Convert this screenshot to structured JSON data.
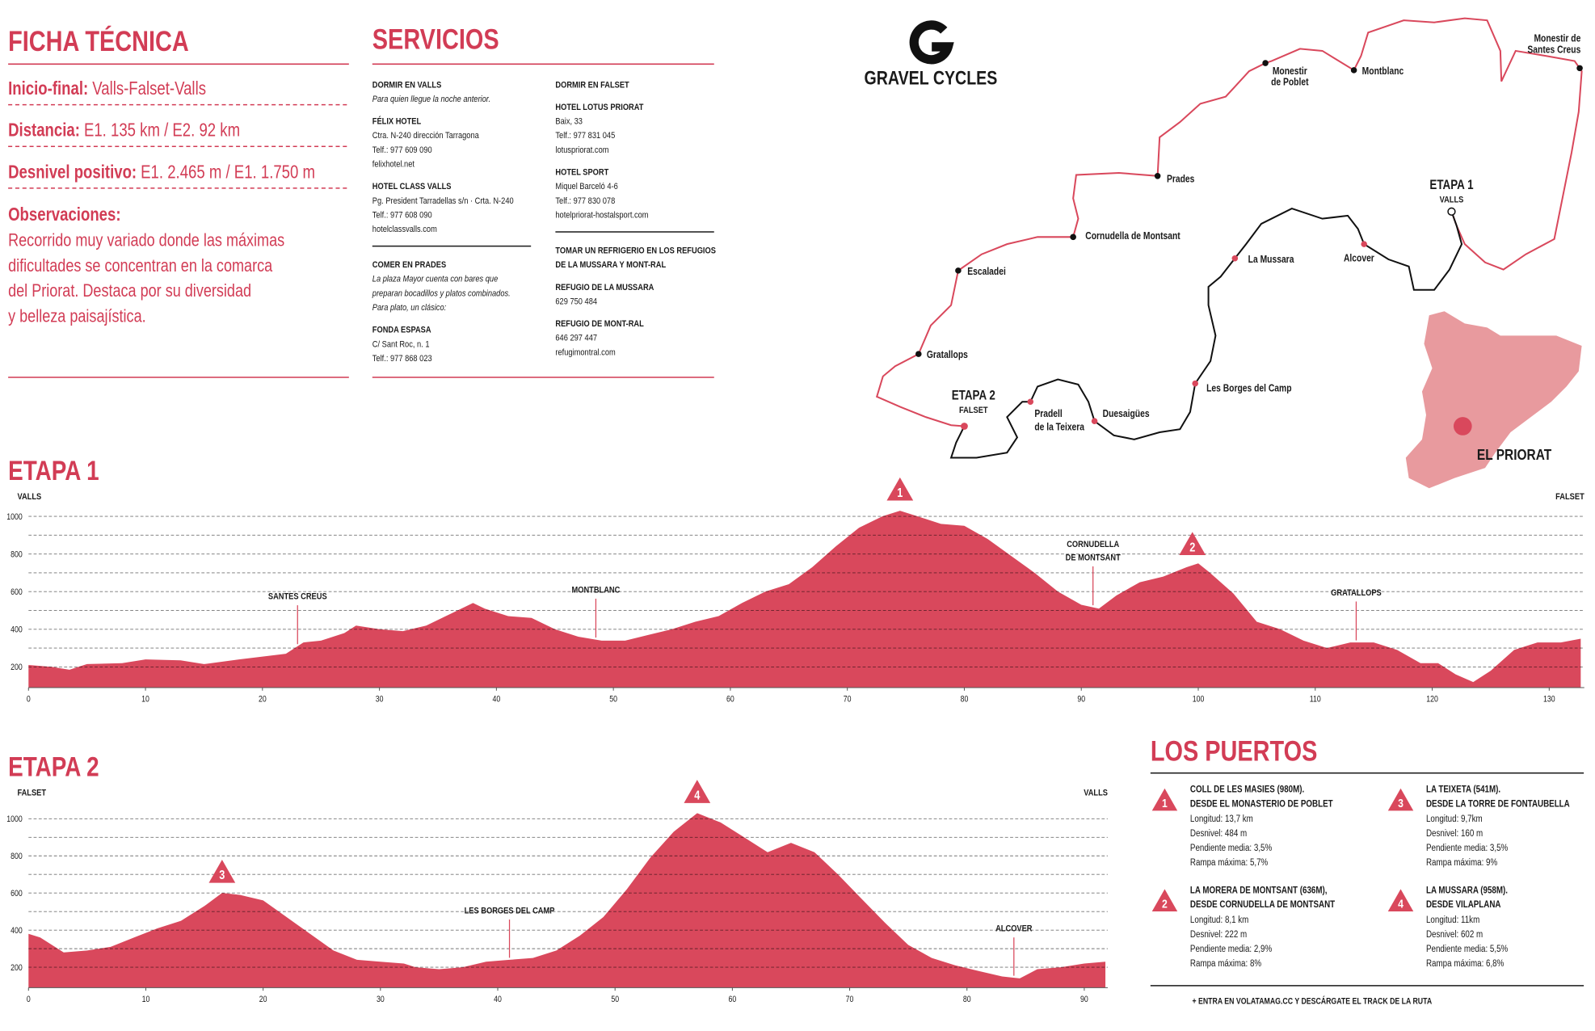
{
  "ficha_tecnica": {
    "title": "FICHA TÉCNICA",
    "items": [
      {
        "label": "Inicio-final:",
        "text": "Valls-Falset-Valls"
      },
      {
        "label": "Distancia:",
        "text": "E1. 135 km / E2. 92 km"
      },
      {
        "label": "Desnivel positivo:",
        "text": "E1. 2.465 m /  E1. 1.750 m"
      }
    ],
    "observaciones_label": "Observaciones:",
    "observaciones": [
      "Recorrido muy variado donde las máximas",
      "dificultades se concentran en la comarca",
      "del Priorat. Destaca por su diversidad",
      "y belleza paisajística."
    ]
  },
  "servicios": {
    "title": "SERVICIOS",
    "columns": [
      [
        [
          {
            "heading": [
              "DORMIR EN VALLS"
            ],
            "note": [
              "Para quien llegue la noche anterior."
            ]
          },
          {
            "heading": [
              "FÉLIX HOTEL"
            ],
            "lines": [
              "Ctra. N-240 dirección Tarragona",
              "Telf.: 977 609 090",
              "felixhotel.net"
            ]
          },
          {
            "heading": [
              "HOTEL CLASS VALLS"
            ],
            "lines": [
              "Pg. President Tarradellas s/n · Crta. N-240",
              "Telf.: 977 608 090",
              "hotelclassvalls.com"
            ]
          }
        ],
        [
          {
            "heading": [
              "COMER EN PRADES"
            ],
            "note": [
              "La plaza Mayor cuenta con bares que",
              "preparan bocadillos y platos combinados.",
              "Para plato, un clásico:"
            ]
          },
          {
            "heading": [
              "FONDA ESPASA"
            ],
            "lines": [
              "C/ Sant Roc, n. 1",
              "Telf.: 977 868 023"
            ]
          }
        ]
      ],
      [
        [
          {
            "heading": [
              "DORMIR EN FALSET"
            ]
          },
          {
            "heading": [
              "HOTEL LOTUS PRIORAT"
            ],
            "lines": [
              "Baix, 33",
              "Telf.: 977 831 045",
              "lotuspriorat.com"
            ]
          },
          {
            "heading": [
              "HOTEL  SPORT"
            ],
            "lines": [
              "Miquel Barceló 4-6",
              "Telf.: 977 830 078",
              "hotelpriorat-hostalsport.com"
            ]
          }
        ],
        [
          {
            "heading": [
              "TOMAR UN REFRIGERIO EN LOS REFUGIOS",
              "DE LA MUSSARA Y MONT-RAL"
            ]
          },
          {
            "heading": [
              "REFUGIO DE LA MUSSARA"
            ],
            "lines": [
              "629 750 484"
            ]
          },
          {
            "heading": [
              "REFUGIO DE MONT-RAL"
            ],
            "lines": [
              "646 297 447",
              "refugimontral.com"
            ]
          }
        ]
      ]
    ]
  },
  "map": {
    "brand": "GRAVEL CYCLES",
    "stage_labels": [
      {
        "title": "ETAPA 1",
        "subtitle": "VALLS"
      },
      {
        "title": "ETAPA 2",
        "subtitle": "FALSET"
      }
    ],
    "places_etapa_1": [
      [
        "Monestir de",
        "Santes Creus"
      ],
      [
        "Montblanc"
      ],
      [
        "Monestir",
        "de Poblet"
      ],
      [
        "Prades"
      ],
      [
        "Cornudella de Montsant"
      ],
      [
        "Escaladei"
      ],
      [
        "Gratallops"
      ]
    ],
    "places_etapa_2": [
      [
        "La Mussara"
      ],
      [
        "Alcover"
      ],
      [
        "Les Borges del Camp"
      ],
      [
        "Duesaigües"
      ],
      [
        "Pradell",
        "de la Teixera"
      ]
    ],
    "region": "EL PRIORAT"
  },
  "chart_data": [
    {
      "type": "area",
      "title": "ETAPA 1",
      "start_label": "VALLS",
      "end_label": "FALSET",
      "color": "#d9485c",
      "x": [
        0,
        2,
        3.5,
        5,
        8,
        10,
        13,
        15,
        18,
        20,
        22,
        23.5,
        25,
        27,
        28,
        30,
        32,
        34,
        36,
        38,
        39,
        41,
        43,
        45,
        47,
        49,
        51,
        53,
        55,
        57,
        59,
        61,
        63,
        65,
        67,
        69,
        71,
        73,
        74.5,
        76,
        78,
        80,
        82,
        84,
        86,
        88,
        90,
        91.5,
        93,
        95,
        97,
        99,
        100,
        101,
        103,
        105,
        107,
        109,
        111,
        113,
        115,
        117,
        119,
        120.5,
        122,
        123.5,
        125,
        127,
        129,
        131,
        132.7
      ],
      "values": [
        210,
        200,
        185,
        215,
        220,
        240,
        235,
        215,
        240,
        255,
        270,
        330,
        340,
        380,
        420,
        400,
        390,
        420,
        480,
        540,
        510,
        470,
        460,
        400,
        360,
        340,
        340,
        370,
        400,
        440,
        470,
        540,
        600,
        640,
        730,
        840,
        940,
        1000,
        1030,
        1000,
        960,
        950,
        880,
        790,
        700,
        600,
        530,
        510,
        580,
        650,
        680,
        730,
        750,
        700,
        590,
        440,
        400,
        340,
        300,
        330,
        330,
        290,
        220,
        220,
        160,
        120,
        180,
        290,
        330,
        330,
        350
      ],
      "xlim": [
        0,
        133
      ],
      "ylim": [
        90,
        1050
      ],
      "xticks": [
        0,
        10,
        20,
        30,
        40,
        50,
        60,
        70,
        80,
        90,
        100,
        110,
        120,
        130
      ],
      "yticks": [
        200,
        400,
        600,
        800,
        1000
      ],
      "minor_yticks": [
        300,
        500,
        700,
        900
      ],
      "annotations": [
        {
          "text": [
            "SANTES CREUS"
          ],
          "x": 23
        },
        {
          "text": [
            "MONTBLANC"
          ],
          "x": 48.5
        },
        {
          "text": [
            "CORNUDELLA",
            "DE MONTSANT"
          ],
          "x": 91
        },
        {
          "text": [
            "GRATALLOPS"
          ],
          "x": 113.5
        }
      ],
      "climbs": [
        {
          "label": 1,
          "x": 74.5
        },
        {
          "label": 2,
          "x": 99.5
        }
      ]
    },
    {
      "type": "area",
      "title": "ETAPA 2",
      "start_label": "FALSET",
      "end_label": "VALLS",
      "color": "#d9485c",
      "x": [
        0,
        1,
        3,
        5,
        7,
        9,
        11,
        13,
        15,
        16.5,
        18,
        20,
        22,
        24,
        26,
        28,
        30,
        32,
        33,
        35,
        37,
        39,
        41,
        43,
        45,
        47,
        49,
        51,
        53,
        55,
        57,
        59,
        61,
        63,
        65,
        67,
        69,
        71,
        73,
        75,
        77,
        79,
        81,
        83,
        84.5,
        86,
        88,
        90,
        91.8
      ],
      "values": [
        380,
        360,
        280,
        290,
        310,
        360,
        410,
        450,
        530,
        600,
        590,
        560,
        470,
        380,
        290,
        240,
        230,
        220,
        200,
        190,
        200,
        230,
        240,
        250,
        290,
        370,
        470,
        620,
        790,
        930,
        1030,
        980,
        900,
        820,
        870,
        820,
        700,
        570,
        440,
        320,
        250,
        210,
        180,
        150,
        140,
        190,
        200,
        220,
        230
      ],
      "xlim": [
        0,
        92
      ],
      "ylim": [
        90,
        1050
      ],
      "xticks": [
        0,
        10,
        20,
        30,
        40,
        50,
        60,
        70,
        80,
        90
      ],
      "yticks": [
        200,
        400,
        600,
        800,
        1000
      ],
      "minor_yticks": [
        300,
        500,
        700,
        900
      ],
      "annotations": [
        {
          "text": [
            "LES BORGES DEL CAMP"
          ],
          "x": 41
        },
        {
          "text": [
            "ALCOVER"
          ],
          "x": 84
        }
      ],
      "climbs": [
        {
          "label": 3,
          "x": 16.5
        },
        {
          "label": 4,
          "x": 57
        }
      ]
    }
  ],
  "puertos": {
    "title": "LOS PUERTOS",
    "items": [
      {
        "number": 1,
        "heading": [
          "COLL DE LES MASIES (980M).",
          "DESDE EL MONASTERIO DE POBLET"
        ],
        "details": [
          "Longitud: 13,7 km",
          "Desnivel: 484 m",
          "Pendiente media: 3,5%",
          "Rampa máxima: 5,7%"
        ]
      },
      {
        "number": 2,
        "heading": [
          "LA MORERA DE MONTSANT (636M),",
          "DESDE CORNUDELLA DE MONTSANT"
        ],
        "details": [
          "Longitud: 8,1 km",
          "Desnivel: 222 m",
          "Pendiente media: 2,9%",
          "Rampa máxima: 8%"
        ]
      },
      {
        "number": 3,
        "heading": [
          "LA TEIXETA (541M).",
          "DESDE LA TORRE DE FONTAUBELLA"
        ],
        "details": [
          "Longitud: 9,7km",
          "Desnivel: 160 m",
          "Pendiente media: 3,5%",
          "Rampa máxima: 9%"
        ]
      },
      {
        "number": 4,
        "heading": [
          "LA MUSSARA (958M).",
          "DESDE VILAPLANA"
        ],
        "details": [
          "Longitud: 11km",
          "Desnivel: 602 m",
          "Pendiente media: 5,5%",
          "Rampa máxima: 6,8%"
        ]
      }
    ],
    "footer": "+ ENTRA EN VOLATAMAG.CC Y DESCÁRGATE EL TRACK DE LA RUTA"
  }
}
